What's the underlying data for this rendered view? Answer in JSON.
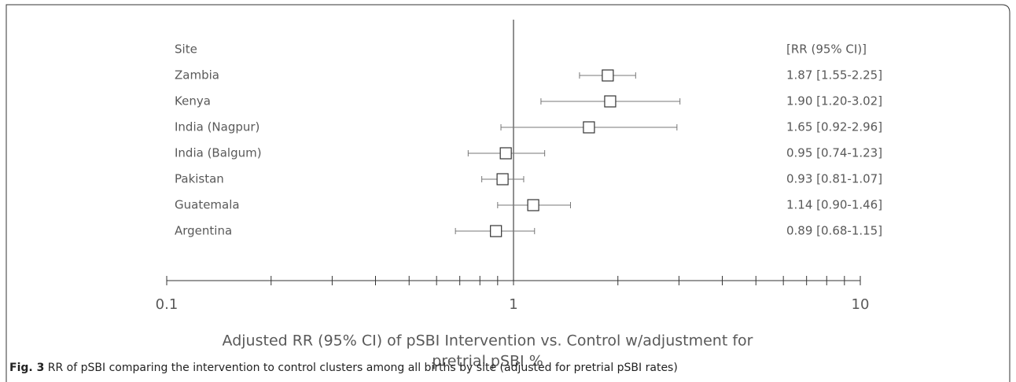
{
  "chart_data": {
    "type": "forest",
    "column_headers": [
      "Site",
      "[RR (95% CI)]"
    ],
    "categories": [
      "Zambia",
      "Kenya",
      "India (Nagpur)",
      "India (Balgum)",
      "Pakistan",
      "Guatemala",
      "Argentina"
    ],
    "values": [
      1.87,
      1.9,
      1.65,
      0.95,
      0.93,
      1.14,
      0.89
    ],
    "ci_low": [
      1.55,
      1.2,
      0.92,
      0.74,
      0.81,
      0.9,
      0.68
    ],
    "ci_high": [
      2.25,
      3.02,
      2.96,
      1.23,
      1.07,
      1.46,
      1.15
    ],
    "value_labels": [
      "1.87 [1.55-2.25]",
      "1.90 [1.20-3.02]",
      "1.65 [0.92-2.96]",
      "0.95 [0.74-1.23]",
      "0.93 [0.81-1.07]",
      "1.14 [0.90-1.46]",
      "0.89 [0.68-1.15]"
    ],
    "xlim": [
      0.1,
      10
    ],
    "log_x": true,
    "xticks": [
      0.1,
      1,
      10
    ],
    "xminorticks": [
      0.2,
      0.3,
      0.4,
      0.5,
      0.6,
      0.7,
      0.8,
      0.9,
      2,
      3,
      4,
      5,
      6,
      7,
      8,
      9
    ],
    "ref_line": 1,
    "xlabel": [
      "Adjusted RR (95% CI) of pSBI Intervention vs. Control w/adjustment for",
      "pretrial pSBI %"
    ]
  },
  "caption": {
    "label": "Fig. 3",
    "text": "RR of pSBI comparing the intervention to control clusters among all births by site (adjusted for pretrial pSBI rates)"
  }
}
